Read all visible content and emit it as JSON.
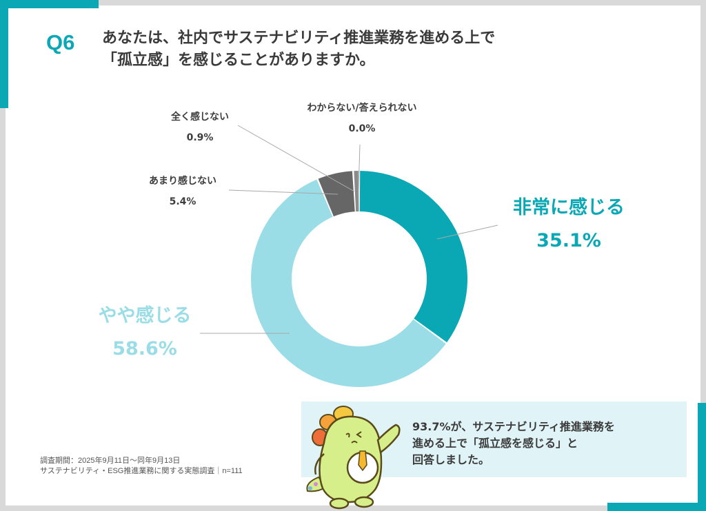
{
  "header": {
    "question_number": "Q6",
    "question_lines": [
      "あなたは、社内でサステナビリティ推進業務を進める上で",
      "「孤立感」を感じることがありますか。"
    ]
  },
  "colors": {
    "accent": "#0aa8b5",
    "light_accent": "#9adde6",
    "dark_gray": "#666666",
    "mid_gray": "#8a8a8a",
    "frame": "#d9d9d9",
    "summary_bg": "#e0f3f7"
  },
  "chart_data": {
    "type": "pie",
    "subtype": "donut",
    "title": "あなたは、社内でサステナビリティ推進業務を進める上で「孤立感」を感じることがありますか。",
    "categories": [
      "非常に感じる",
      "やや感じる",
      "あまり感じない",
      "全く感じない",
      "わからない/答えられない"
    ],
    "values": [
      35.1,
      58.6,
      5.4,
      0.9,
      0.0
    ],
    "labels": [
      "35.1%",
      "58.6%",
      "5.4%",
      "0.9%",
      "0.0%"
    ],
    "colors": [
      "#0aa8b5",
      "#9adde6",
      "#666666",
      "#8a8a8a",
      "#bbbbbb"
    ],
    "start_angle": "12 o'clock, clockwise",
    "legend": "none (direct labels with leader lines)",
    "unit": "%"
  },
  "labels": {
    "strong": {
      "name": "非常に感じる",
      "pct": "35.1%"
    },
    "somewhat": {
      "name": "やや感じる",
      "pct": "58.6%"
    },
    "rarely": {
      "name": "あまり感じない",
      "pct": "5.4%"
    },
    "never": {
      "name": "全く感じない",
      "pct": "0.9%"
    },
    "unknown": {
      "name": "わからない/答えられない",
      "pct": "0.0%"
    }
  },
  "footnote": {
    "period": "調査期間：2025年9月11日～同年9月13日",
    "survey": "サステナビリティ・ESG推進業務に関する実態調査｜n=111"
  },
  "summary": {
    "lines": [
      "93.7%が、サステナビリティ推進業務を",
      "進める上で「孤立感を感じる」と",
      "回答しました。"
    ]
  }
}
